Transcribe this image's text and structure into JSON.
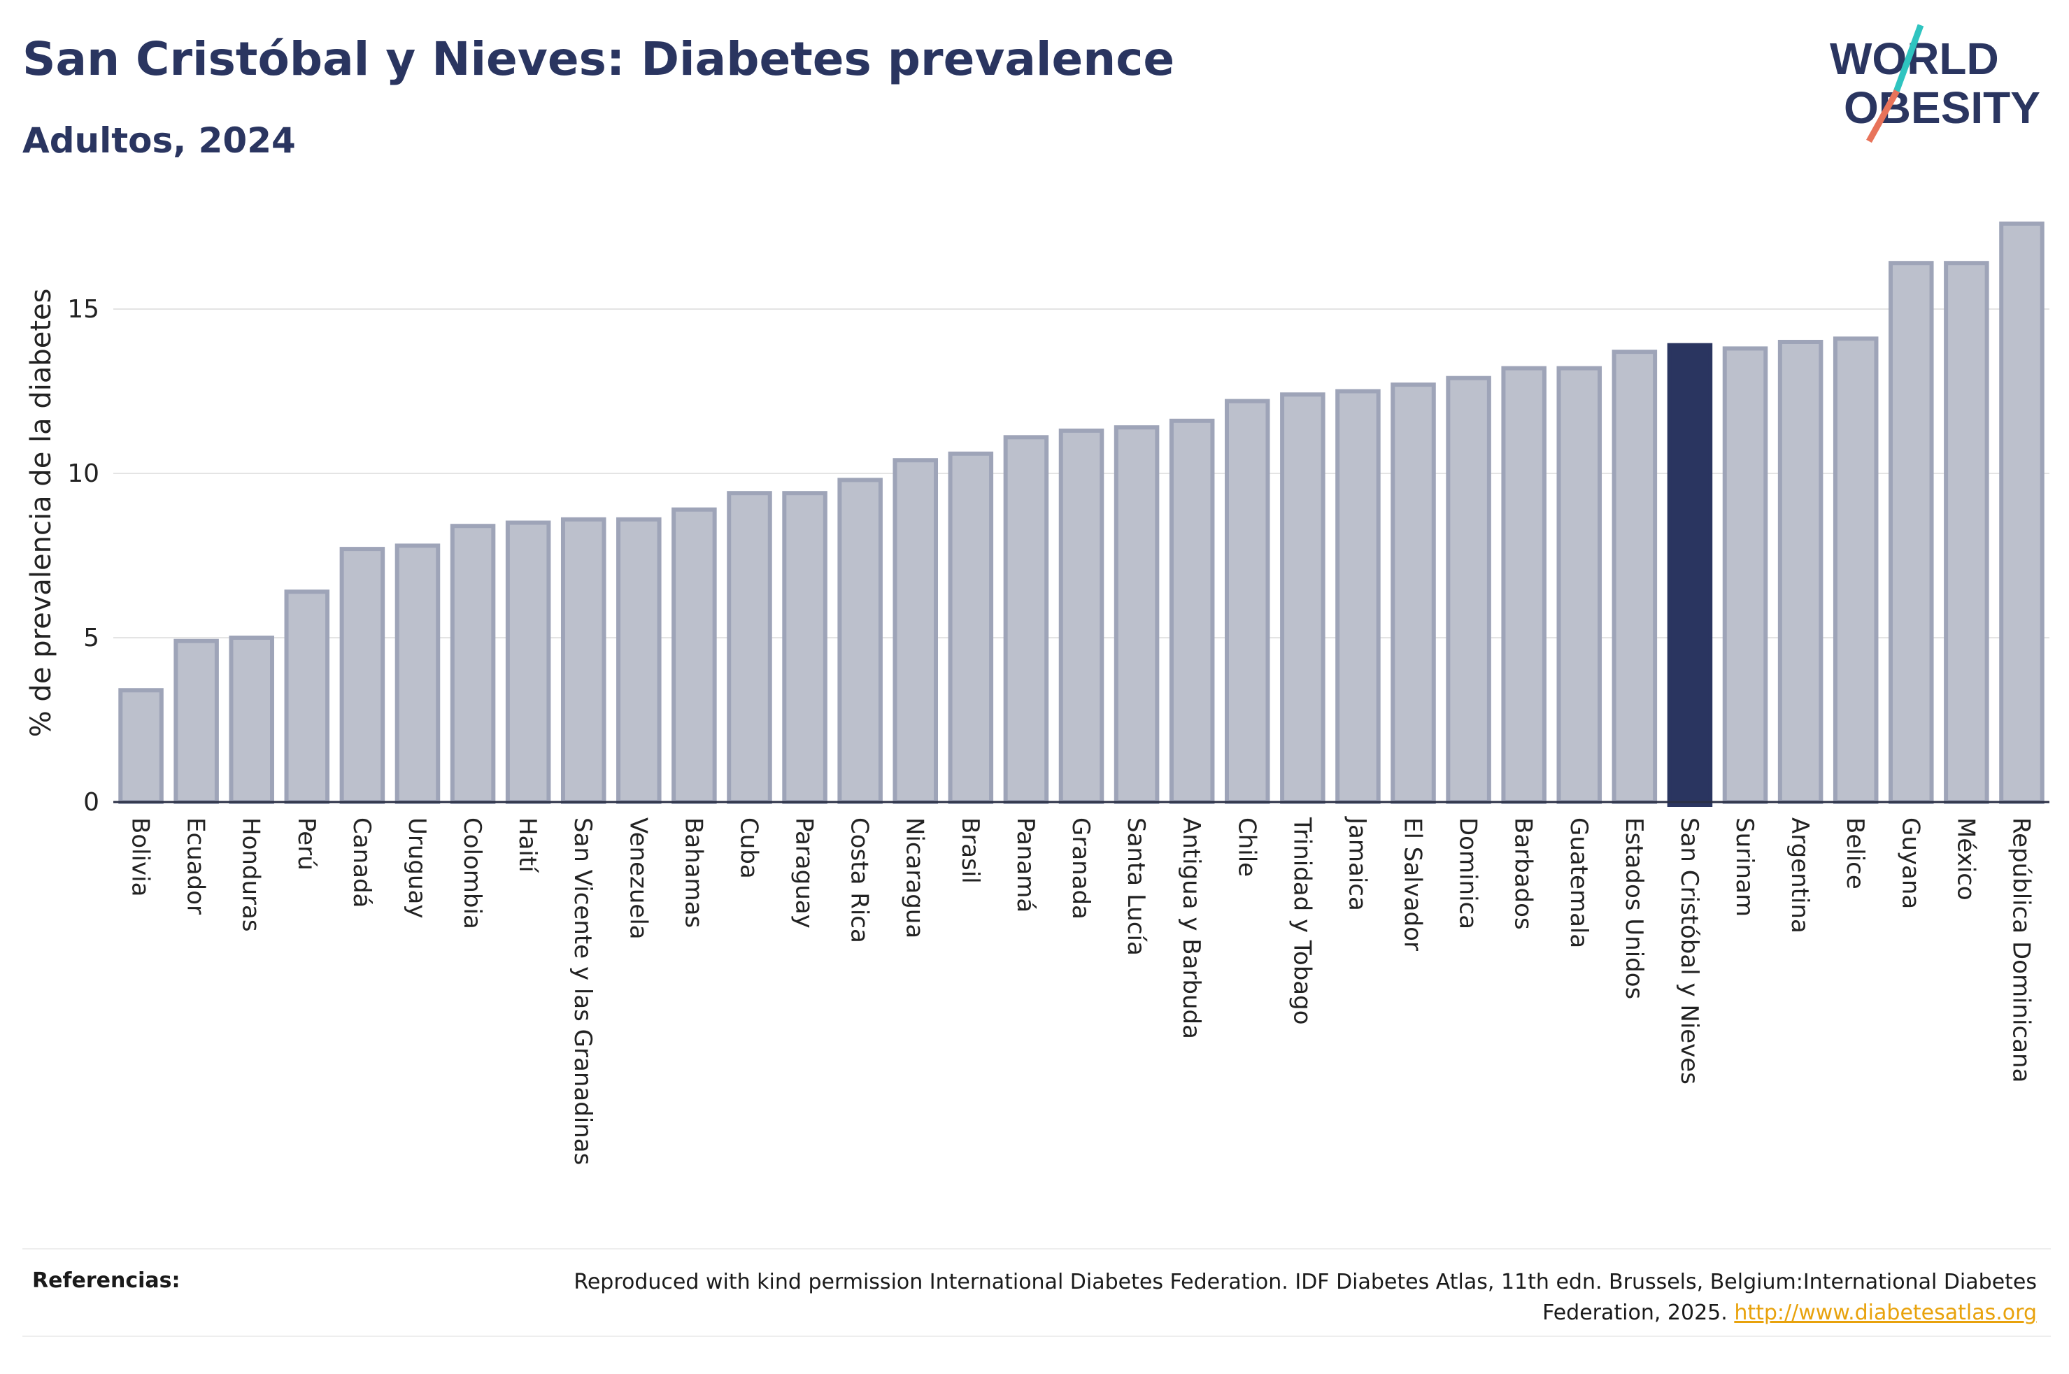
{
  "title": "San Cristóbal y Nieves: Diabetes prevalence",
  "subtitle": "Adultos, 2024",
  "logo": {
    "line1": "WORLD",
    "line2": "OBESITY",
    "accent_colors": [
      "#2fc4c0",
      "#e8735a"
    ]
  },
  "colors": {
    "bar": "#bcc0cc",
    "bar_border": "#9ea4b8",
    "highlight": "#2a3560",
    "text": "#2a3560"
  },
  "chart_data": {
    "type": "bar",
    "ylabel": "% de prevalencia de la diabetes",
    "xlabel": "",
    "ylim": [
      0,
      18
    ],
    "yticks": [
      0,
      5,
      10,
      15
    ],
    "grid": true,
    "highlight": "San Cristóbal y Nieves",
    "categories": [
      "Bolivia",
      "Ecuador",
      "Honduras",
      "Perú",
      "Canadá",
      "Uruguay",
      "Colombia",
      "Haití",
      "San Vicente y las Granadinas",
      "Venezuela",
      "Bahamas",
      "Cuba",
      "Paraguay",
      "Costa Rica",
      "Nicaragua",
      "Brasil",
      "Panamá",
      "Granada",
      "Santa Lucía",
      "Antigua y Barbuda",
      "Chile",
      "Trinidad y Tobago",
      "Jamaica",
      "El Salvador",
      "Dominica",
      "Barbados",
      "Guatemala",
      "Estados Unidos",
      "San Cristóbal y Nieves",
      "Surinam",
      "Argentina",
      "Belice",
      "Guyana",
      "México",
      "República Dominicana"
    ],
    "values": [
      3.4,
      4.9,
      5.0,
      6.4,
      7.7,
      7.8,
      8.4,
      8.5,
      8.6,
      8.6,
      8.9,
      9.4,
      9.4,
      9.8,
      10.4,
      10.6,
      11.1,
      11.3,
      11.4,
      11.6,
      12.2,
      12.4,
      12.5,
      12.7,
      12.9,
      13.2,
      13.2,
      13.7,
      13.9,
      13.8,
      14.0,
      14.1,
      16.4,
      16.4,
      17.6
    ]
  },
  "footer": {
    "label": "Referencias:",
    "text": "Reproduced with kind permission International Diabetes Federation. IDF Diabetes Atlas, 11th edn. Brussels, Belgium:International Diabetes Federation, 2025.",
    "link": "http://www.diabetesatlas.org"
  }
}
